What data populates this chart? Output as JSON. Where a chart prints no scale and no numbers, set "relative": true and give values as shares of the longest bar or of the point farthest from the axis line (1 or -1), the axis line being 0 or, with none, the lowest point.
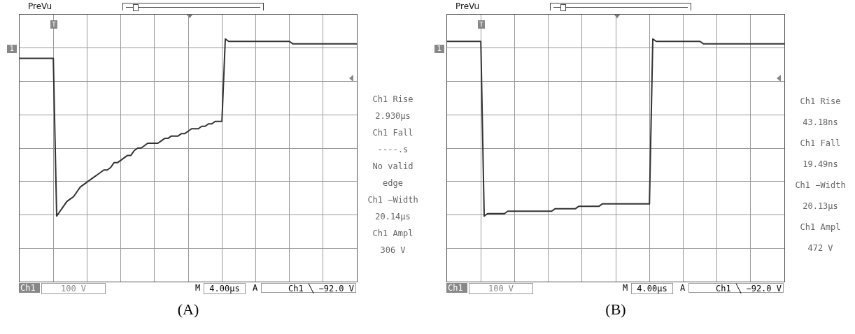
{
  "chart_data": [
    {
      "type": "line",
      "title": "(A)",
      "subtitle": "PreVu",
      "relative": true,
      "grid": true,
      "marker": "none",
      "color": "#333333",
      "annotations": [
        "T",
        "1",
        "Ch1 Rise",
        "2.930µs",
        "Ch1 Fall",
        "----.s",
        "No valid",
        "edge",
        "Ch1 −Width",
        "20.14µs",
        "Ch1 Ampl",
        "306 V",
        "Ch1",
        "100 V",
        "M",
        "4.00µs",
        "A",
        "Ch1 ╲ −92.0 V"
      ],
      "categories": [
        null,
        null,
        null,
        null,
        null,
        null,
        null,
        null,
        null,
        null,
        null,
        null,
        null,
        null,
        null,
        null,
        null,
        null,
        null,
        null,
        null,
        null,
        null,
        null,
        null,
        null,
        null,
        null,
        null,
        null,
        null,
        null,
        null,
        null,
        null,
        null,
        null,
        null,
        null,
        null,
        null,
        null,
        null,
        null,
        null,
        null,
        null,
        null,
        null,
        null,
        null,
        null,
        null,
        null,
        null,
        null,
        null,
        null,
        null,
        null,
        null,
        null,
        null,
        null,
        null,
        null,
        null,
        null,
        null,
        null,
        null,
        null,
        null,
        null,
        null,
        null,
        null,
        null,
        null,
        null,
        null,
        null,
        null,
        null,
        null,
        null,
        null,
        null,
        null,
        null,
        null,
        null,
        null,
        null,
        null,
        null,
        null,
        null,
        null,
        null,
        null
      ],
      "values": [
        0.92,
        0.92,
        0.92,
        0.92,
        0.92,
        0.92,
        0.92,
        0.92,
        0.92,
        0.92,
        0.92,
        0.27,
        0.29,
        0.31,
        0.33,
        0.34,
        0.35,
        0.37,
        0.39,
        0.4,
        0.41,
        0.42,
        0.43,
        0.44,
        0.45,
        0.46,
        0.46,
        0.47,
        0.49,
        0.49,
        0.5,
        0.51,
        0.52,
        0.52,
        0.54,
        0.55,
        0.55,
        0.56,
        0.57,
        0.57,
        0.57,
        0.57,
        0.58,
        0.59,
        0.59,
        0.6,
        0.6,
        0.6,
        0.61,
        0.61,
        0.62,
        0.63,
        0.63,
        0.63,
        0.64,
        0.64,
        0.65,
        0.65,
        0.66,
        0.66,
        0.66,
        1.0,
        0.99,
        0.99,
        0.99,
        0.99,
        0.99,
        0.99,
        0.99,
        0.99,
        0.99,
        0.99,
        0.99,
        0.99,
        0.99,
        0.99,
        0.99,
        0.99,
        0.99,
        0.99,
        0.99,
        0.98,
        0.98,
        0.98,
        0.98,
        0.98,
        0.98,
        0.98,
        0.98,
        0.98,
        0.98,
        0.98,
        0.98,
        0.98,
        0.98,
        0.98,
        0.98,
        0.98,
        0.98,
        0.98,
        0.98
      ]
    },
    {
      "type": "line",
      "title": "(B)",
      "subtitle": "PreVu",
      "relative": true,
      "grid": true,
      "marker": "none",
      "color": "#333333",
      "annotations": [
        "T",
        "1",
        "Ch1 Rise",
        "43.18ns",
        "Ch1 Fall",
        "19.49ns",
        "Ch1 −Width",
        "20.13µs",
        "Ch1 Ampl",
        "472 V",
        "Ch1",
        "100 V",
        "M",
        "4.00µs",
        "A",
        "Ch1 ╲ −92.0 V"
      ],
      "categories": [
        null,
        null,
        null,
        null,
        null,
        null,
        null,
        null,
        null,
        null,
        null,
        null,
        null,
        null,
        null,
        null,
        null,
        null,
        null,
        null,
        null,
        null,
        null,
        null,
        null,
        null,
        null,
        null,
        null,
        null,
        null,
        null,
        null,
        null,
        null,
        null,
        null,
        null,
        null,
        null,
        null,
        null,
        null,
        null,
        null,
        null,
        null,
        null,
        null,
        null,
        null,
        null,
        null,
        null,
        null,
        null,
        null,
        null,
        null,
        null,
        null,
        null,
        null,
        null,
        null,
        null,
        null,
        null,
        null,
        null,
        null,
        null,
        null,
        null,
        null,
        null,
        null,
        null,
        null,
        null,
        null,
        null,
        null,
        null,
        null,
        null,
        null,
        null,
        null,
        null,
        null,
        null,
        null,
        null,
        null,
        null,
        null,
        null,
        null,
        null,
        null
      ],
      "values": [
        0.99,
        0.99,
        0.99,
        0.99,
        0.99,
        0.99,
        0.99,
        0.99,
        0.99,
        0.99,
        0.99,
        0.27,
        0.28,
        0.28,
        0.28,
        0.28,
        0.28,
        0.28,
        0.29,
        0.29,
        0.29,
        0.29,
        0.29,
        0.29,
        0.29,
        0.29,
        0.29,
        0.29,
        0.29,
        0.29,
        0.29,
        0.29,
        0.3,
        0.3,
        0.3,
        0.3,
        0.3,
        0.3,
        0.3,
        0.31,
        0.31,
        0.31,
        0.31,
        0.31,
        0.31,
        0.31,
        0.32,
        0.32,
        0.32,
        0.32,
        0.32,
        0.32,
        0.32,
        0.32,
        0.32,
        0.32,
        0.32,
        0.32,
        0.32,
        0.32,
        0.32,
        1.0,
        0.99,
        0.99,
        0.99,
        0.99,
        0.99,
        0.99,
        0.99,
        0.99,
        0.99,
        0.99,
        0.99,
        0.99,
        0.99,
        0.99,
        0.98,
        0.98,
        0.98,
        0.98,
        0.98,
        0.98,
        0.98,
        0.98,
        0.98,
        0.98,
        0.98,
        0.98,
        0.98,
        0.98,
        0.98,
        0.98,
        0.98,
        0.98,
        0.98,
        0.98,
        0.98,
        0.98,
        0.98,
        0.98,
        0.98
      ]
    }
  ]
}
